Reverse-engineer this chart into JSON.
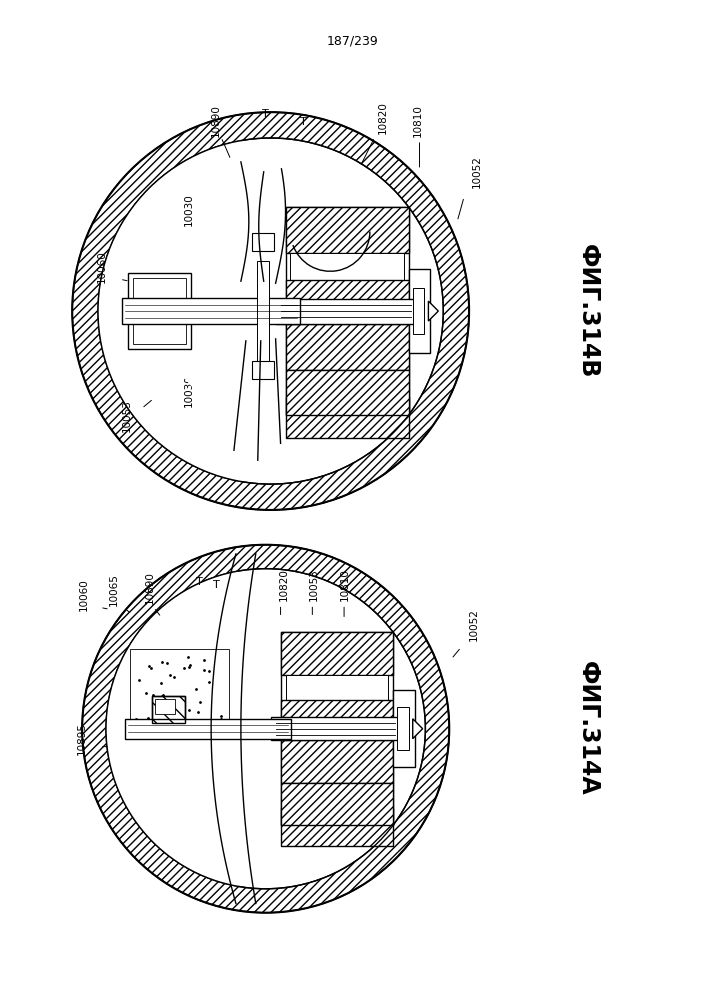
{
  "page_number": "187/239",
  "fig_top_label": "ФИГ.314B",
  "fig_bottom_label": "ФИГ.314A",
  "background_color": "#ffffff",
  "line_color": "#000000"
}
